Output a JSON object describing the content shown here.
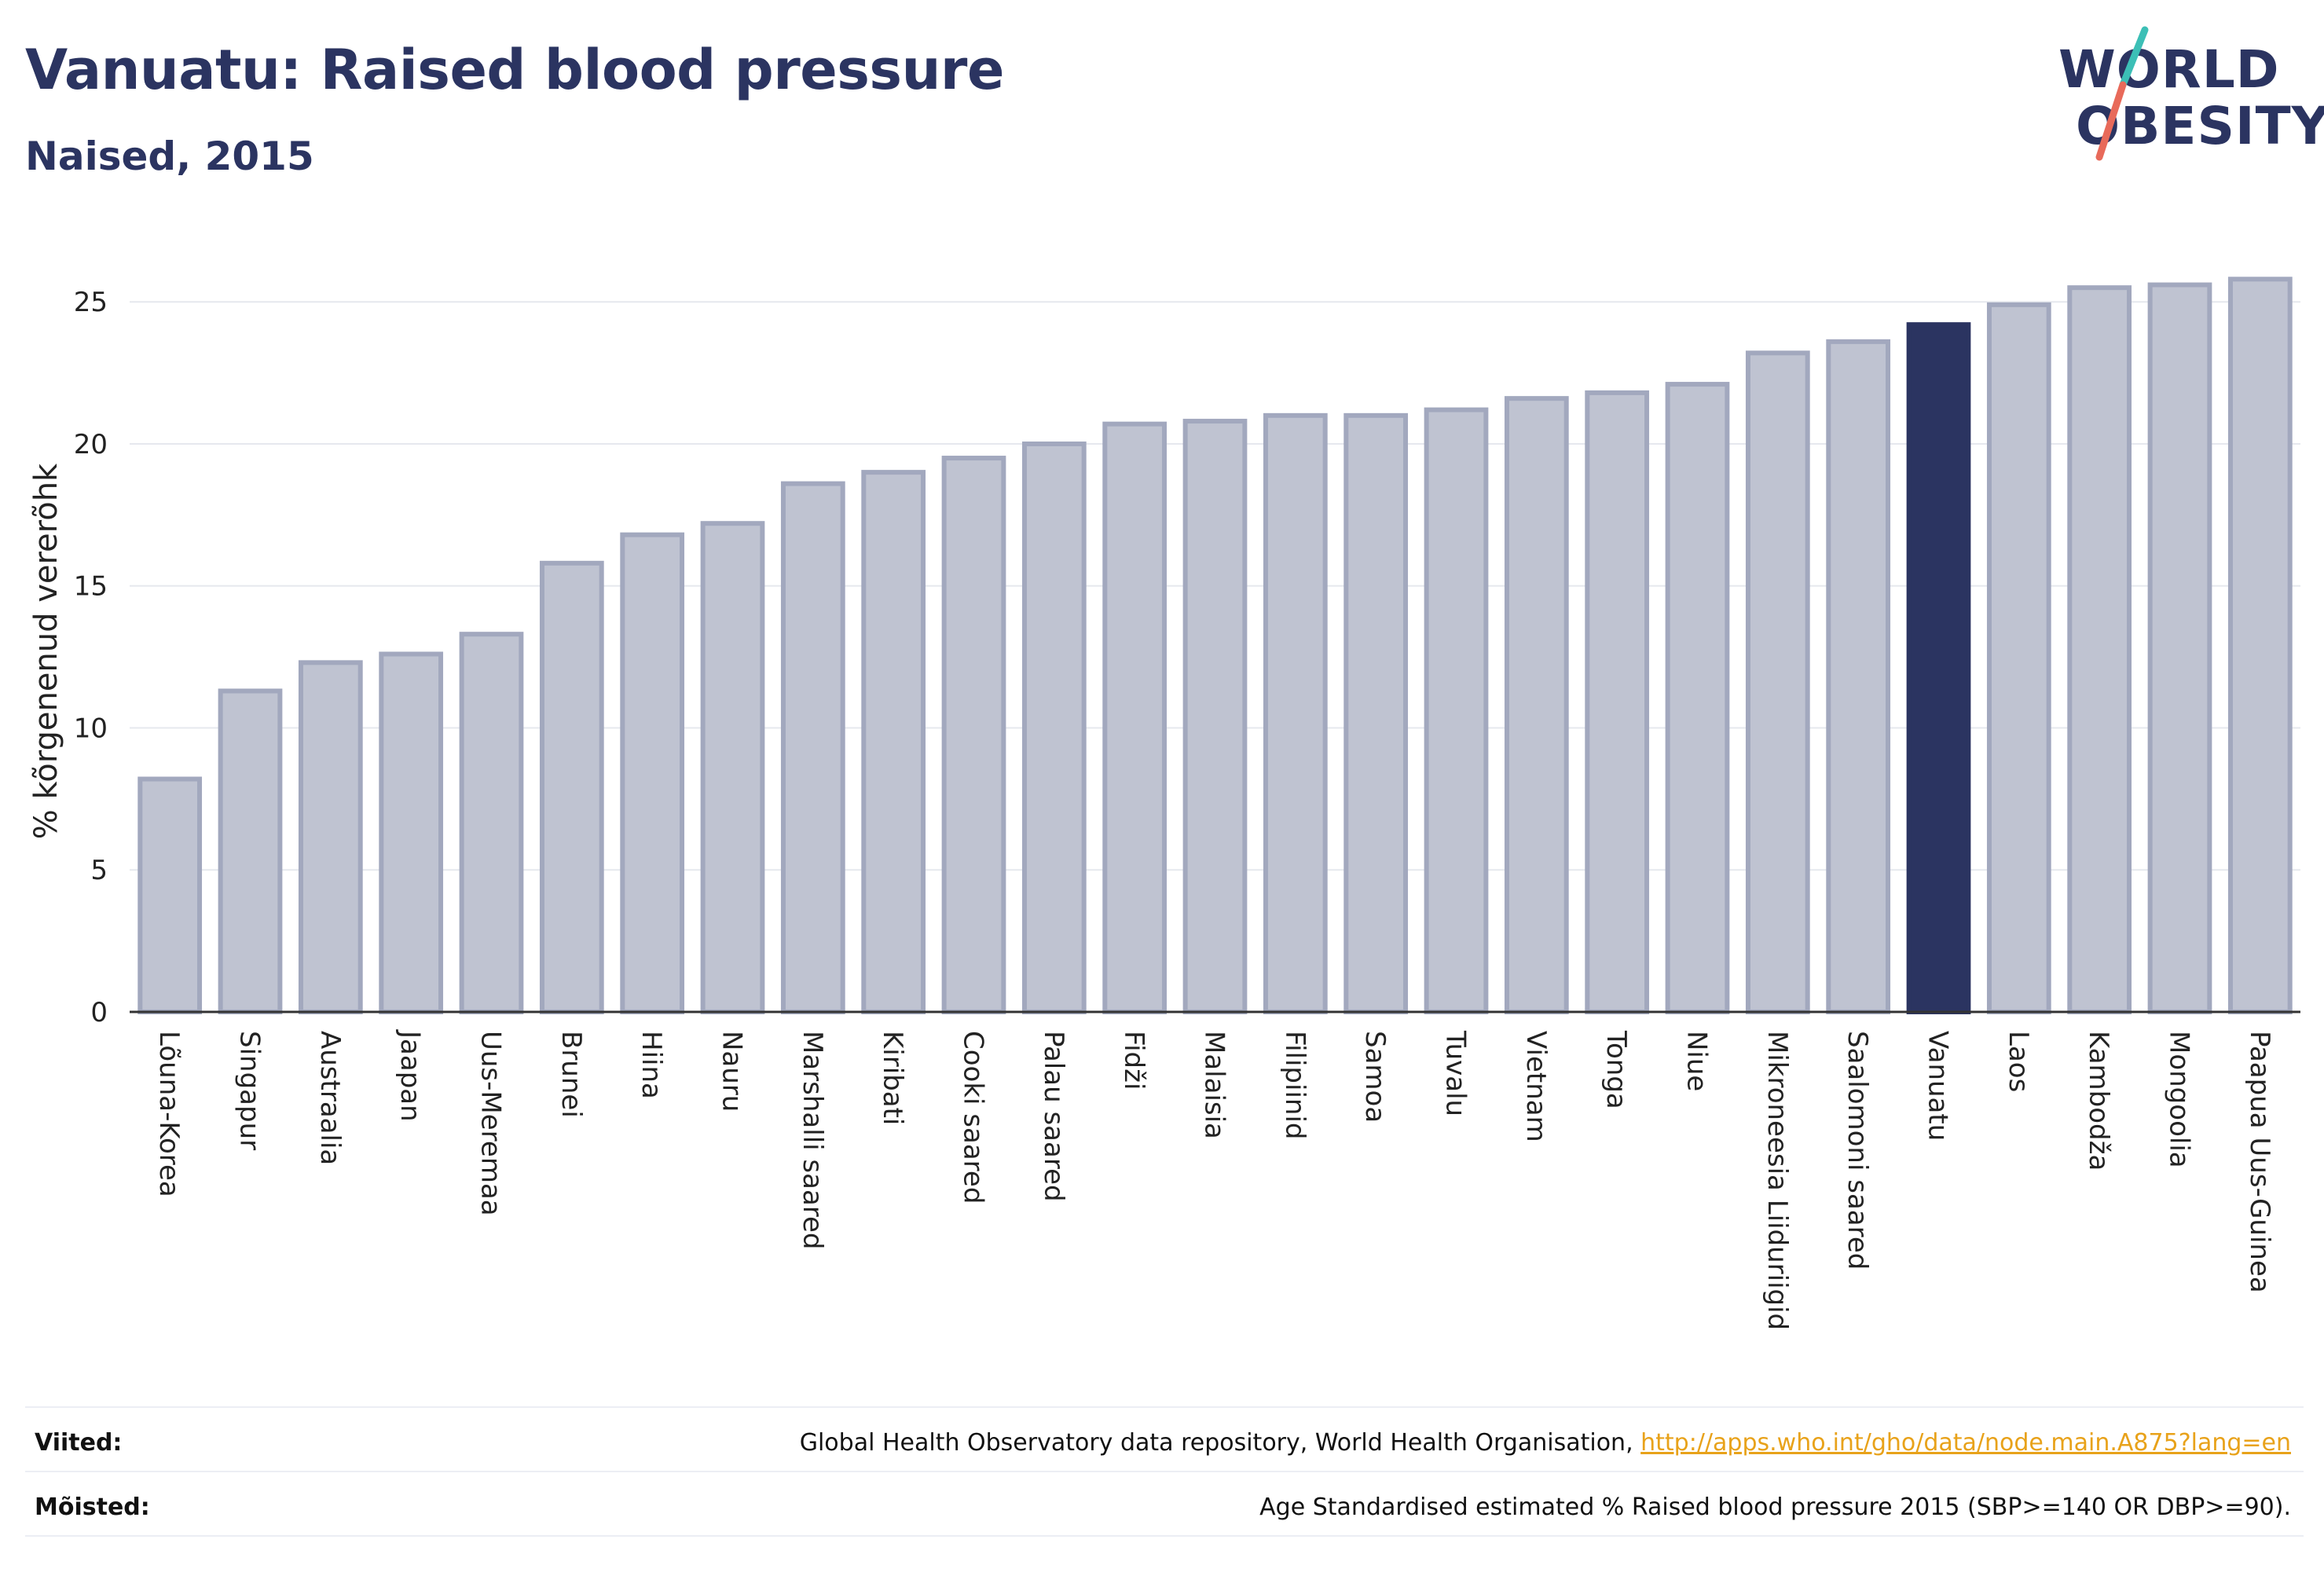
{
  "header": {
    "title": "Vanuatu: Raised blood pressure",
    "subtitle": "Naised, 2015"
  },
  "logo": {
    "line1": "WORLD",
    "line2": "OBESITY",
    "colors": {
      "text": "#2b3461",
      "slash_top": "#3cbfb6",
      "slash_bottom": "#e86a5a"
    }
  },
  "chart_data": {
    "type": "bar",
    "ylabel": "% kõrgenenud vererõhk",
    "xlabel": "",
    "ylim": [
      0,
      26.5
    ],
    "yticks": [
      0,
      5,
      10,
      15,
      20,
      25
    ],
    "grid": true,
    "highlight": "Vanuatu",
    "colors": {
      "bar": "#bfc3d1",
      "bar_border": "#a2a8be",
      "highlight": "#2b3461"
    },
    "categories": [
      "Lõuna-Korea",
      "Singapur",
      "Austraalia",
      "Jaapan",
      "Uus-Meremaa",
      "Brunei",
      "Hiina",
      "Nauru",
      "Marshalli saared",
      "Kiribati",
      "Cooki saared",
      "Palau saared",
      "Fidži",
      "Malaisia",
      "Filipiinid",
      "Samoa",
      "Tuvalu",
      "Vietnam",
      "Tonga",
      "Niue",
      "Mikroneesia Liiduriigid",
      "Saalomoni saared",
      "Vanuatu",
      "Laos",
      "Kambodža",
      "Mongoolia",
      "Paapua Uus-Guinea"
    ],
    "values": [
      8.2,
      11.3,
      12.3,
      12.6,
      13.3,
      15.8,
      16.8,
      17.2,
      18.6,
      19.0,
      19.5,
      20.0,
      20.7,
      20.8,
      21.0,
      21.0,
      21.2,
      21.6,
      21.8,
      22.1,
      23.2,
      23.6,
      24.2,
      24.9,
      25.5,
      25.6,
      25.8
    ]
  },
  "footer": {
    "sources_label": "Viited:",
    "sources_text": "Global Health Observatory data repository, World Health Organisation, ",
    "sources_link": "http://apps.who.int/gho/data/node.main.A875?lang=en",
    "definitions_label": "Mõisted:",
    "definitions_text": "Age Standardised estimated % Raised blood pressure 2015 (SBP>=140 OR DBP>=90)."
  }
}
